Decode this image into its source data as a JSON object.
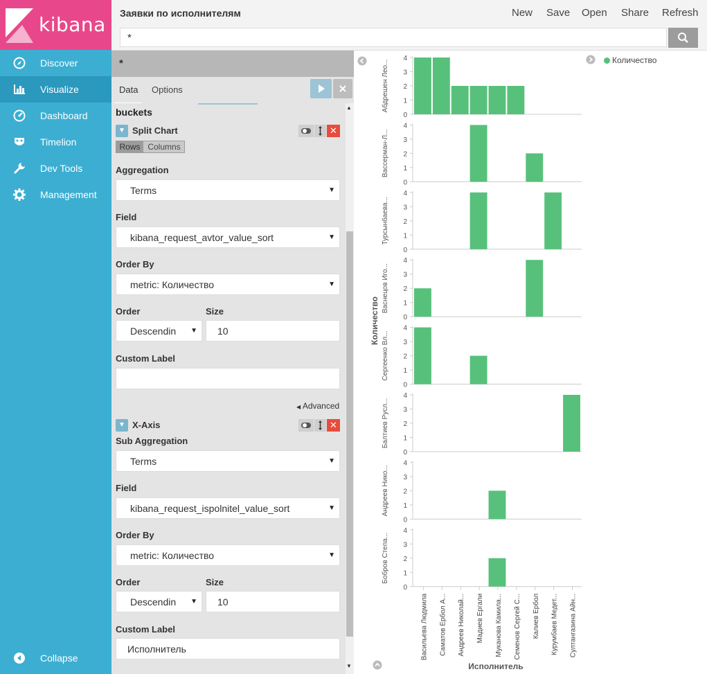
{
  "app": {
    "logo_text": "kibana"
  },
  "sidebar": {
    "items": [
      {
        "label": "Discover",
        "icon": "compass-icon"
      },
      {
        "label": "Visualize",
        "icon": "bar-chart-icon"
      },
      {
        "label": "Dashboard",
        "icon": "dashboard-gauge-icon"
      },
      {
        "label": "Timelion",
        "icon": "timelion-mask-icon"
      },
      {
        "label": "Dev Tools",
        "icon": "wrench-icon"
      },
      {
        "label": "Management",
        "icon": "gear-icon"
      }
    ],
    "collapse_label": "Collapse"
  },
  "header": {
    "title": "Заявки по исполнителям",
    "actions": [
      "New",
      "Save",
      "Open",
      "Share",
      "Refresh"
    ],
    "query_value": "*"
  },
  "editor": {
    "saved_query": "*",
    "tabs": [
      "Data",
      "Options"
    ],
    "section_title": "buckets",
    "split_chart": {
      "title": "Split Chart",
      "rows_label": "Rows",
      "columns_label": "Columns",
      "aggregation_label": "Aggregation",
      "aggregation_value": "Terms",
      "field_label": "Field",
      "field_value": "kibana_request_avtor_value_sort",
      "order_by_label": "Order By",
      "order_by_value": "metric: Количество",
      "order_label": "Order",
      "order_value": "Descendin",
      "size_label": "Size",
      "size_value": "10",
      "custom_label_label": "Custom Label",
      "custom_label_value": ""
    },
    "advanced_label": "Advanced",
    "x_axis": {
      "title": "X-Axis",
      "sub_aggregation_label": "Sub Aggregation",
      "sub_aggregation_value": "Terms",
      "field_label": "Field",
      "field_value": "kibana_request_ispolnitel_value_sort",
      "order_by_label": "Order By",
      "order_by_value": "metric: Количество",
      "order_label": "Order",
      "order_value": "Descendin",
      "size_label": "Size",
      "size_value": "10",
      "custom_label_label": "Custom Label",
      "custom_label_value": "Исполнитель"
    }
  },
  "colors": {
    "bar": "#57c17b",
    "sidebar": "#3caed2",
    "logo_bg": "#e8488b"
  },
  "chart_data": {
    "type": "bar",
    "ylabel": "Количество",
    "xlabel": "Исполнитель",
    "legend": [
      {
        "name": "Количество",
        "color": "#57c17b"
      }
    ],
    "legend_position": "top-right",
    "ylim": [
      0,
      4
    ],
    "yticks": [
      0,
      1,
      2,
      3,
      4
    ],
    "categories": [
      "Васильева Людмила",
      "Саматов Ербол А...",
      "Андреев Николай...",
      "Мадиев Ергали",
      "Муканова Камила...",
      "Семенов Сергей С...",
      "Калиев Ербол",
      "Курумбаев Медет...",
      "Султангазина Айн..."
    ],
    "series": [
      {
        "name": "Абдрешен Лео...",
        "values": [
          4,
          4,
          2,
          2,
          2,
          2,
          0,
          0,
          0
        ]
      },
      {
        "name": "Вассерман-Л...",
        "values": [
          0,
          0,
          0,
          4,
          0,
          0,
          2,
          0,
          0
        ]
      },
      {
        "name": "Турсынбаева...",
        "values": [
          0,
          0,
          0,
          4,
          0,
          0,
          0,
          4,
          0
        ]
      },
      {
        "name": "Васнецов Иго...",
        "values": [
          2,
          0,
          0,
          0,
          0,
          0,
          4,
          0,
          0
        ]
      },
      {
        "name": "Сергеенко Вл...",
        "values": [
          4,
          0,
          0,
          2,
          0,
          0,
          0,
          0,
          0
        ]
      },
      {
        "name": "Балтиев Русл...",
        "values": [
          0,
          0,
          0,
          0,
          0,
          0,
          0,
          0,
          4
        ]
      },
      {
        "name": "Андреев Нико...",
        "values": [
          0,
          0,
          0,
          0,
          2,
          0,
          0,
          0,
          0
        ]
      },
      {
        "name": "Бобров Степа...",
        "values": [
          0,
          0,
          0,
          0,
          2,
          0,
          0,
          0,
          0
        ]
      }
    ]
  }
}
